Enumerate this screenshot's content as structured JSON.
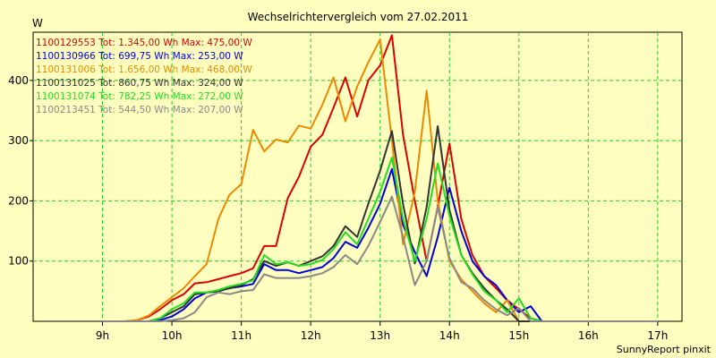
{
  "chart_data": {
    "type": "line",
    "title": "Wechselrichtervergleich vom 27.02.2011",
    "ylabel": "W",
    "xlabel": "",
    "footer": "SunnyReport pinxit",
    "ylim": [
      0,
      480
    ],
    "xlim": [
      8.0,
      17.35
    ],
    "y_ticks": [
      100,
      200,
      300,
      400
    ],
    "x_ticks": [
      {
        "value": 9,
        "label": "9h"
      },
      {
        "value": 10,
        "label": "10h"
      },
      {
        "value": 11,
        "label": "11h"
      },
      {
        "value": 12,
        "label": "12h"
      },
      {
        "value": 13,
        "label": "13h"
      },
      {
        "value": 14,
        "label": "14h"
      },
      {
        "value": 15,
        "label": "15h"
      },
      {
        "value": 16,
        "label": "16h"
      },
      {
        "value": 17,
        "label": "17h"
      }
    ],
    "grid": true,
    "legend_position": "top-left",
    "x": [
      9.0,
      9.17,
      9.33,
      9.5,
      9.67,
      9.83,
      10.0,
      10.17,
      10.33,
      10.5,
      10.67,
      10.83,
      11.0,
      11.17,
      11.33,
      11.5,
      11.67,
      11.83,
      12.0,
      12.17,
      12.33,
      12.5,
      12.67,
      12.83,
      13.0,
      13.17,
      13.33,
      13.5,
      13.67,
      13.83,
      14.0,
      14.17,
      14.33,
      14.5,
      14.67,
      14.83,
      15.0,
      15.17,
      15.33,
      15.5,
      15.67,
      15.83,
      16.0,
      16.17,
      16.33,
      16.5,
      16.67,
      16.83,
      17.0
    ],
    "series": [
      {
        "name": "1100129553",
        "legend": "1100129553 Tot: 1.345,00 Wh Max: 475,00 W",
        "color": "#dd0000",
        "values": [
          0,
          0,
          0,
          2,
          8,
          20,
          35,
          45,
          63,
          65,
          70,
          75,
          80,
          88,
          125,
          125,
          205,
          240,
          290,
          310,
          355,
          405,
          340,
          400,
          425,
          475,
          310,
          200,
          100,
          190,
          295,
          170,
          110,
          75,
          55,
          35,
          20,
          5,
          0,
          0,
          0,
          0,
          0,
          0,
          0,
          0,
          0,
          0,
          0
        ]
      },
      {
        "name": "1100130966",
        "legend": "1100130966 Tot: 699,75 Wh Max: 253,00 W",
        "color": "#0000dd",
        "values": [
          0,
          0,
          0,
          0,
          0,
          2,
          8,
          20,
          38,
          48,
          50,
          55,
          58,
          62,
          95,
          85,
          85,
          80,
          85,
          90,
          105,
          132,
          122,
          155,
          195,
          253,
          160,
          115,
          75,
          140,
          222,
          150,
          100,
          75,
          60,
          35,
          15,
          25,
          0,
          0,
          0,
          0,
          0,
          0,
          0,
          0,
          0,
          0,
          0
        ]
      },
      {
        "name": "1100131006",
        "legend": "1100131006 Tot: 1.656,00 Wh Max: 468,00 W",
        "color": "#ee8800",
        "values": [
          0,
          0,
          0,
          2,
          10,
          25,
          40,
          55,
          75,
          95,
          170,
          210,
          228,
          318,
          282,
          302,
          297,
          325,
          320,
          360,
          405,
          332,
          390,
          430,
          468,
          300,
          128,
          215,
          383,
          200,
          100,
          70,
          50,
          30,
          15,
          35,
          0,
          0,
          0,
          0,
          0,
          0,
          0,
          0,
          0,
          0,
          0,
          0,
          0
        ]
      },
      {
        "name": "1100131025",
        "legend": "1100131025 Tot: 860,75 Wh Max: 324,00 W",
        "color": "#333333",
        "values": [
          0,
          0,
          0,
          0,
          0,
          5,
          15,
          25,
          45,
          48,
          50,
          55,
          60,
          70,
          100,
          92,
          98,
          92,
          100,
          108,
          125,
          158,
          140,
          195,
          250,
          316,
          195,
          96,
          190,
          324,
          185,
          110,
          80,
          55,
          35,
          20,
          0,
          0,
          0,
          0,
          0,
          0,
          0,
          0,
          0,
          0,
          0,
          0,
          0
        ]
      },
      {
        "name": "1100131074",
        "legend": "1100131074 Tot: 782,25 Wh Max: 272,00 W",
        "color": "#22dd22",
        "values": [
          0,
          0,
          0,
          0,
          0,
          5,
          20,
          30,
          48,
          48,
          52,
          58,
          62,
          68,
          110,
          95,
          98,
          92,
          95,
          102,
          120,
          148,
          128,
          170,
          215,
          272,
          170,
          100,
          170,
          262,
          175,
          110,
          78,
          50,
          35,
          15,
          38,
          5,
          0,
          0,
          0,
          0,
          0,
          0,
          0,
          0,
          0,
          0,
          0
        ]
      },
      {
        "name": "1100213451",
        "legend": "1100213451 Tot: 544,50 Wh Max: 207,00 W",
        "color": "#888888",
        "values": [
          0,
          0,
          0,
          0,
          0,
          0,
          2,
          5,
          15,
          40,
          48,
          45,
          50,
          52,
          78,
          72,
          72,
          72,
          75,
          80,
          90,
          110,
          95,
          125,
          165,
          207,
          140,
          60,
          100,
          190,
          105,
          65,
          55,
          35,
          20,
          10,
          22,
          0,
          0,
          0,
          0,
          0,
          0,
          0,
          0,
          0,
          0,
          0,
          0
        ]
      }
    ]
  }
}
